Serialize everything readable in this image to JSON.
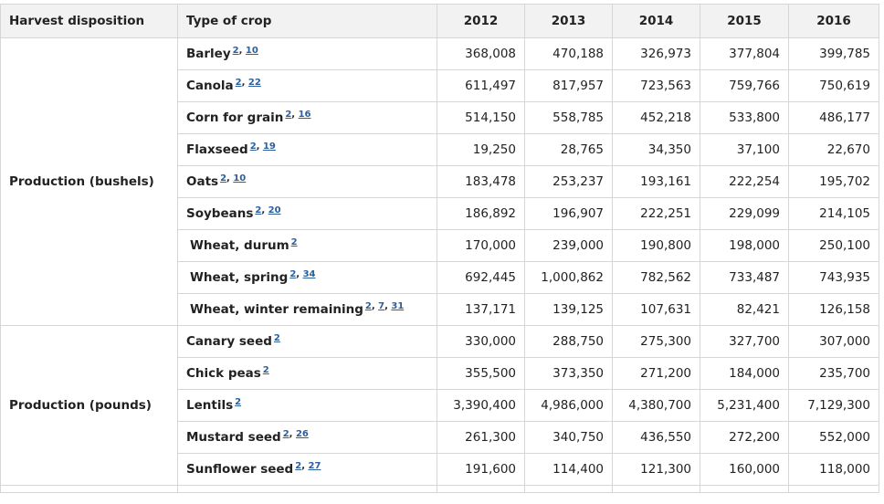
{
  "header": {
    "disposition": "Harvest disposition",
    "crop": "Type of crop",
    "years": [
      "2012",
      "2013",
      "2014",
      "2015",
      "2016"
    ]
  },
  "groups": [
    {
      "disposition": "Production (bushels)",
      "rows": [
        {
          "crop": "Barley",
          "refs": [
            "2",
            "10"
          ],
          "values": [
            "368,008",
            "470,188",
            "326,973",
            "377,804",
            "399,785"
          ]
        },
        {
          "crop": "Canola",
          "refs": [
            "2",
            "22"
          ],
          "values": [
            "611,497",
            "817,957",
            "723,563",
            "759,766",
            "750,619"
          ]
        },
        {
          "crop": "Corn for grain",
          "refs": [
            "2",
            "16"
          ],
          "values": [
            "514,150",
            "558,785",
            "452,218",
            "533,800",
            "486,177"
          ]
        },
        {
          "crop": "Flaxseed",
          "refs": [
            "2",
            "19"
          ],
          "values": [
            "19,250",
            "28,765",
            "34,350",
            "37,100",
            "22,670"
          ]
        },
        {
          "crop": "Oats",
          "refs": [
            "2",
            "10"
          ],
          "values": [
            "183,478",
            "253,237",
            "193,161",
            "222,254",
            "195,702"
          ]
        },
        {
          "crop": "Soybeans",
          "refs": [
            "2",
            "20"
          ],
          "values": [
            "186,892",
            "196,907",
            "222,251",
            "229,099",
            "214,105"
          ]
        },
        {
          "crop": "Wheat, durum",
          "refs": [
            "2"
          ],
          "values": [
            "170,000",
            "239,000",
            "190,800",
            "198,000",
            "250,100"
          ]
        },
        {
          "crop": "Wheat, spring",
          "refs": [
            "2",
            "34"
          ],
          "values": [
            "692,445",
            "1,000,862",
            "782,562",
            "733,487",
            "743,935"
          ]
        },
        {
          "crop": "Wheat, winter remaining",
          "refs": [
            "2",
            "7",
            "31"
          ],
          "values": [
            "137,171",
            "139,125",
            "107,631",
            "82,421",
            "126,158"
          ]
        }
      ]
    },
    {
      "disposition": "Production (pounds)",
      "rows": [
        {
          "crop": "Canary seed",
          "refs": [
            "2"
          ],
          "values": [
            "330,000",
            "288,750",
            "275,300",
            "327,700",
            "307,000"
          ]
        },
        {
          "crop": "Chick peas",
          "refs": [
            "2"
          ],
          "values": [
            "355,500",
            "373,350",
            "271,200",
            "184,000",
            "235,700"
          ]
        },
        {
          "crop": "Lentils",
          "refs": [
            "2"
          ],
          "values": [
            "3,390,400",
            "4,986,000",
            "4,380,700",
            "5,231,400",
            "7,129,300"
          ]
        },
        {
          "crop": "Mustard seed",
          "refs": [
            "2",
            "26"
          ],
          "values": [
            "261,300",
            "340,750",
            "436,550",
            "272,200",
            "552,000"
          ]
        },
        {
          "crop": "Sunflower seed",
          "refs": [
            "2",
            "27"
          ],
          "values": [
            "191,600",
            "114,400",
            "121,300",
            "160,000",
            "118,000"
          ]
        }
      ]
    }
  ]
}
